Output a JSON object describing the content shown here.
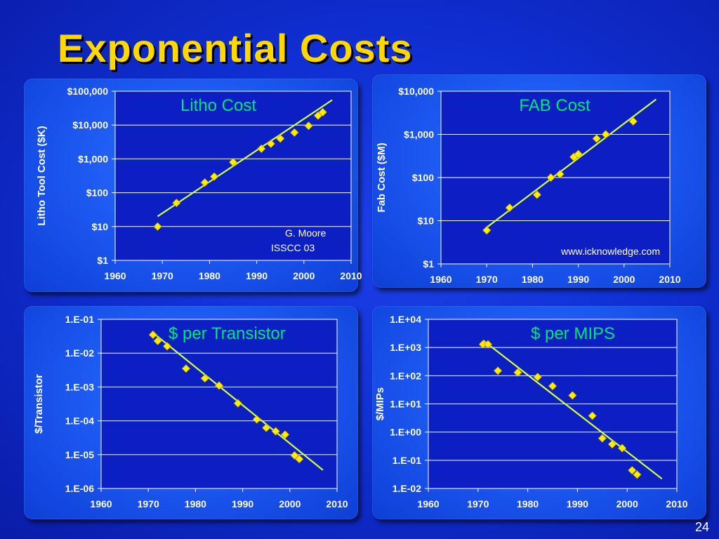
{
  "slide": {
    "title": "Exponential Costs",
    "number": "24"
  },
  "chart_data": [
    {
      "id": "litho",
      "type": "scatter",
      "title": "Litho Cost",
      "ylabel": "Litho Tool Cost ($K)",
      "xlabel": "",
      "y_scale": "log",
      "xlim": [
        1960,
        2010
      ],
      "ylim": [
        1,
        100000
      ],
      "x_ticks": [
        "1960",
        "1970",
        "1980",
        "1990",
        "2000",
        "2010"
      ],
      "y_ticks": [
        "$1",
        "$10",
        "$100",
        "$1,000",
        "$10,000",
        "$100,000"
      ],
      "annotations": [
        "G. Moore",
        "ISSCC 03"
      ],
      "points": [
        {
          "x": 1969,
          "y": 10
        },
        {
          "x": 1973,
          "y": 50
        },
        {
          "x": 1979,
          "y": 200
        },
        {
          "x": 1981,
          "y": 300
        },
        {
          "x": 1985,
          "y": 800
        },
        {
          "x": 1991,
          "y": 2000
        },
        {
          "x": 1993,
          "y": 2800
        },
        {
          "x": 1995,
          "y": 4000
        },
        {
          "x": 1998,
          "y": 6000
        },
        {
          "x": 2001,
          "y": 9500
        },
        {
          "x": 2003,
          "y": 19000
        },
        {
          "x": 2004,
          "y": 24000
        }
      ],
      "trend": [
        {
          "x": 1969,
          "y": 20
        },
        {
          "x": 2006,
          "y": 55000
        }
      ],
      "grid": true
    },
    {
      "id": "fab",
      "type": "scatter",
      "title": "FAB Cost",
      "ylabel": "Fab Cost ($M)",
      "xlabel": "",
      "y_scale": "log",
      "xlim": [
        1960,
        2010
      ],
      "ylim": [
        1,
        10000
      ],
      "x_ticks": [
        "1960",
        "1970",
        "1980",
        "1990",
        "2000",
        "2010"
      ],
      "y_ticks": [
        "$1",
        "$10",
        "$100",
        "$1,000",
        "$10,000"
      ],
      "annotations": [
        "www.icknowledge.com"
      ],
      "points": [
        {
          "x": 1970,
          "y": 6
        },
        {
          "x": 1975,
          "y": 20
        },
        {
          "x": 1981,
          "y": 40
        },
        {
          "x": 1984,
          "y": 100
        },
        {
          "x": 1986,
          "y": 120
        },
        {
          "x": 1989,
          "y": 300
        },
        {
          "x": 1990,
          "y": 350
        },
        {
          "x": 1994,
          "y": 800
        },
        {
          "x": 1996,
          "y": 1000
        },
        {
          "x": 2002,
          "y": 2000
        }
      ],
      "trend": [
        {
          "x": 1970,
          "y": 7
        },
        {
          "x": 2007,
          "y": 6500
        }
      ],
      "grid": true
    },
    {
      "id": "transistor",
      "type": "scatter",
      "title": "$ per Transistor",
      "ylabel": "$/Transistor",
      "xlabel": "",
      "y_scale": "log",
      "xlim": [
        1960,
        2010
      ],
      "ylim": [
        1e-06,
        0.1
      ],
      "x_ticks": [
        "1960",
        "1970",
        "1980",
        "1990",
        "2000",
        "2010"
      ],
      "y_ticks": [
        "1.E-06",
        "1.E-05",
        "1.E-04",
        "1.E-03",
        "1.E-02",
        "1.E-01"
      ],
      "annotations": [],
      "points": [
        {
          "x": 1971,
          "y": 0.035
        },
        {
          "x": 1972,
          "y": 0.023
        },
        {
          "x": 1974,
          "y": 0.016
        },
        {
          "x": 1978,
          "y": 0.0035
        },
        {
          "x": 1982,
          "y": 0.0018
        },
        {
          "x": 1985,
          "y": 0.0011
        },
        {
          "x": 1989,
          "y": 0.00033
        },
        {
          "x": 1993,
          "y": 0.00011
        },
        {
          "x": 1995,
          "y": 6.2e-05
        },
        {
          "x": 1997,
          "y": 4.9e-05
        },
        {
          "x": 1999,
          "y": 3.9e-05
        },
        {
          "x": 2001,
          "y": 9.5e-06
        },
        {
          "x": 2002,
          "y": 7.4e-06
        }
      ],
      "trend": [
        {
          "x": 1971,
          "y": 0.04
        },
        {
          "x": 2007,
          "y": 3.5e-06
        }
      ],
      "grid": true
    },
    {
      "id": "mips",
      "type": "scatter",
      "title": "$ per MIPS",
      "ylabel": "$/MIPs",
      "xlabel": "",
      "y_scale": "log",
      "xlim": [
        1960,
        2010
      ],
      "ylim": [
        0.01,
        10000
      ],
      "x_ticks": [
        "1960",
        "1970",
        "1980",
        "1990",
        "2000",
        "2010"
      ],
      "y_ticks": [
        "1.E-02",
        "1.E-01",
        "1.E+00",
        "1.E+01",
        "1.E+02",
        "1.E+03",
        "1.E+04"
      ],
      "annotations": [],
      "points": [
        {
          "x": 1971,
          "y": 1300
        },
        {
          "x": 1972,
          "y": 1300
        },
        {
          "x": 1974,
          "y": 150
        },
        {
          "x": 1978,
          "y": 130
        },
        {
          "x": 1982,
          "y": 90
        },
        {
          "x": 1985,
          "y": 43
        },
        {
          "x": 1989,
          "y": 20
        },
        {
          "x": 1993,
          "y": 3.8
        },
        {
          "x": 1995,
          "y": 0.6
        },
        {
          "x": 1997,
          "y": 0.37
        },
        {
          "x": 1999,
          "y": 0.27
        },
        {
          "x": 2001,
          "y": 0.044
        },
        {
          "x": 2002,
          "y": 0.031
        }
      ],
      "trend": [
        {
          "x": 1971,
          "y": 1800
        },
        {
          "x": 2007,
          "y": 0.022
        }
      ],
      "grid": true
    }
  ],
  "colors": {
    "title": "#ffd800",
    "chart_title": "#00e676",
    "marker": "#ffee00",
    "trend": "#d4ff3c",
    "plot_bg": "#0b1fc2",
    "grid": "#ffffff",
    "text": "#ffffff"
  }
}
